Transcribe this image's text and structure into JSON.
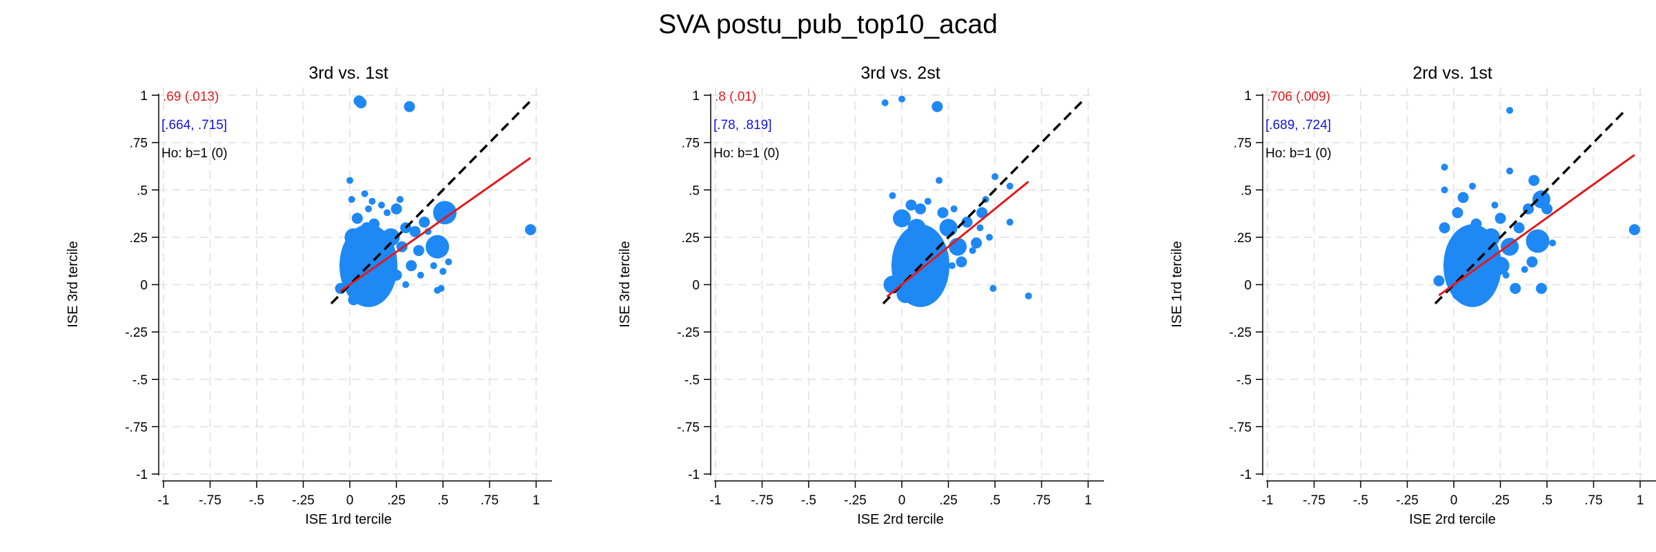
{
  "title": "SVA postu_pub_top10_acad",
  "colors": {
    "points": "#1e88f5",
    "fit_line": "#e3191c",
    "diagonal": "#000000",
    "coef_text": "#e3191c",
    "ci_text": "#1212e6",
    "test_text": "#000000",
    "grid": "#e6e6e6"
  },
  "chart_data": [
    {
      "type": "scatter",
      "title": "3rd vs. 1st",
      "xlabel": "ISE 1rd tercile",
      "ylabel": "ISE 3rd tercile",
      "xlim": [
        -1,
        1
      ],
      "ylim": [
        -1,
        1
      ],
      "xticks": [
        "-1",
        "-.75",
        "-.5",
        "-.25",
        "0",
        ".25",
        ".5",
        ".75",
        "1"
      ],
      "yticks": [
        "-1",
        "-.75",
        "-.5",
        "-.25",
        "0",
        ".25",
        ".5",
        ".75",
        "1"
      ],
      "grid": true,
      "annotations": {
        "coef": ".69 (.013)",
        "ci": "[.664, .715]",
        "test": "Ho: b=1 (0)"
      },
      "fit_line": {
        "slope": 0.69,
        "intercept": 0.0,
        "x_range": [
          -0.05,
          0.97
        ]
      },
      "diagonal": {
        "x_range": [
          -0.1,
          0.97
        ]
      },
      "points": [
        {
          "x": 0.05,
          "y": 0.97,
          "s": 2
        },
        {
          "x": 0.06,
          "y": 0.96,
          "s": 2
        },
        {
          "x": 0.32,
          "y": 0.94,
          "s": 2
        },
        {
          "x": 0.97,
          "y": 0.29,
          "s": 2
        },
        {
          "x": 0.0,
          "y": 0.55,
          "s": 1
        },
        {
          "x": 0.12,
          "y": 0.44,
          "s": 1
        },
        {
          "x": 0.27,
          "y": 0.45,
          "s": 1
        },
        {
          "x": 0.25,
          "y": 0.4,
          "s": 2
        },
        {
          "x": 0.51,
          "y": 0.38,
          "s": 4
        },
        {
          "x": 0.47,
          "y": 0.2,
          "s": 4
        },
        {
          "x": 0.53,
          "y": 0.12,
          "s": 1
        },
        {
          "x": 0.5,
          "y": 0.07,
          "s": 1
        },
        {
          "x": 0.49,
          "y": -0.02,
          "s": 1
        },
        {
          "x": 0.47,
          "y": -0.03,
          "s": 1
        },
        {
          "x": 0.13,
          "y": 0.32,
          "s": 2
        },
        {
          "x": 0.3,
          "y": 0.3,
          "s": 2
        },
        {
          "x": 0.4,
          "y": 0.33,
          "s": 2
        },
        {
          "x": 0.37,
          "y": 0.18,
          "s": 2
        },
        {
          "x": 0.33,
          "y": 0.1,
          "s": 2
        },
        {
          "x": -0.05,
          "y": -0.02,
          "s": 2
        },
        {
          "x": 0.0,
          "y": 0.05,
          "s": 3
        },
        {
          "x": 0.0,
          "y": 0.15,
          "s": 3
        },
        {
          "x": 0.02,
          "y": 0.25,
          "s": 3
        },
        {
          "x": 0.05,
          "y": 0.1,
          "s": 3
        },
        {
          "x": 0.08,
          "y": 0.2,
          "s": 3
        },
        {
          "x": 0.1,
          "y": 0.0,
          "s": 3
        },
        {
          "x": 0.12,
          "y": 0.08,
          "s": 3
        },
        {
          "x": 0.15,
          "y": 0.18,
          "s": 3
        },
        {
          "x": 0.2,
          "y": 0.12,
          "s": 3
        },
        {
          "x": 0.22,
          "y": 0.25,
          "s": 3
        },
        {
          "x": 0.06,
          "y": -0.05,
          "s": 2
        },
        {
          "x": 0.02,
          "y": -0.08,
          "s": 2
        },
        {
          "x": 0.18,
          "y": 0.03,
          "s": 2
        },
        {
          "x": 0.25,
          "y": 0.05,
          "s": 2
        },
        {
          "x": 0.28,
          "y": 0.2,
          "s": 2
        },
        {
          "x": 0.04,
          "y": 0.35,
          "s": 2
        },
        {
          "x": 0.09,
          "y": 0.3,
          "s": 2
        },
        {
          "x": 0.35,
          "y": 0.28,
          "s": 2
        },
        {
          "x": 0.2,
          "y": 0.38,
          "s": 1
        },
        {
          "x": 0.45,
          "y": 0.1,
          "s": 1
        },
        {
          "x": 0.42,
          "y": 0.28,
          "s": 1
        },
        {
          "x": 0.15,
          "y": -0.03,
          "s": 2
        },
        {
          "x": 0.3,
          "y": 0.0,
          "s": 1
        },
        {
          "x": 0.38,
          "y": 0.05,
          "s": 1
        },
        {
          "x": 0.1,
          "y": 0.4,
          "s": 1
        },
        {
          "x": 0.17,
          "y": 0.42,
          "s": 1
        },
        {
          "x": 0.08,
          "y": 0.48,
          "s": 1
        },
        {
          "x": 0.01,
          "y": 0.45,
          "s": 1
        }
      ]
    },
    {
      "type": "scatter",
      "title": "3rd vs. 2st",
      "xlabel": "ISE 2rd tercile",
      "ylabel": "ISE 3rd tercile",
      "xlim": [
        -1,
        1
      ],
      "ylim": [
        -1,
        1
      ],
      "xticks": [
        "-1",
        "-.75",
        "-.5",
        "-.25",
        "0",
        ".25",
        ".5",
        ".75",
        "1"
      ],
      "yticks": [
        "-1",
        "-.75",
        "-.5",
        "-.25",
        "0",
        ".25",
        ".5",
        ".75",
        "1"
      ],
      "grid": true,
      "annotations": {
        "coef": ".8 (.01)",
        "ci": "[.78, .819]",
        "test": "Ho: b=1 (0)"
      },
      "fit_line": {
        "slope": 0.8,
        "intercept": 0.0,
        "x_range": [
          -0.08,
          0.68
        ]
      },
      "diagonal": {
        "x_range": [
          -0.1,
          0.97
        ]
      },
      "points": [
        {
          "x": -0.09,
          "y": 0.96,
          "s": 1
        },
        {
          "x": 0.0,
          "y": 0.98,
          "s": 1
        },
        {
          "x": 0.19,
          "y": 0.94,
          "s": 2
        },
        {
          "x": 0.5,
          "y": 0.57,
          "s": 1
        },
        {
          "x": 0.58,
          "y": 0.52,
          "s": 1
        },
        {
          "x": 0.2,
          "y": 0.55,
          "s": 1
        },
        {
          "x": 0.45,
          "y": 0.45,
          "s": 1
        },
        {
          "x": 0.43,
          "y": 0.38,
          "s": 2
        },
        {
          "x": 0.58,
          "y": 0.33,
          "s": 1
        },
        {
          "x": 0.47,
          "y": 0.25,
          "s": 1
        },
        {
          "x": 0.49,
          "y": -0.02,
          "s": 1
        },
        {
          "x": 0.68,
          "y": -0.06,
          "s": 1
        },
        {
          "x": -0.05,
          "y": 0.47,
          "s": 1
        },
        {
          "x": 0.0,
          "y": 0.35,
          "s": 3
        },
        {
          "x": 0.05,
          "y": 0.2,
          "s": 3
        },
        {
          "x": 0.0,
          "y": 0.05,
          "s": 3
        },
        {
          "x": 0.1,
          "y": 0.1,
          "s": 3
        },
        {
          "x": 0.15,
          "y": 0.25,
          "s": 3
        },
        {
          "x": 0.2,
          "y": 0.15,
          "s": 3
        },
        {
          "x": 0.25,
          "y": 0.3,
          "s": 3
        },
        {
          "x": 0.3,
          "y": 0.2,
          "s": 3
        },
        {
          "x": -0.05,
          "y": 0.0,
          "s": 3
        },
        {
          "x": 0.02,
          "y": -0.05,
          "s": 3
        },
        {
          "x": 0.08,
          "y": -0.02,
          "s": 2
        },
        {
          "x": 0.12,
          "y": 0.02,
          "s": 2
        },
        {
          "x": 0.18,
          "y": 0.05,
          "s": 2
        },
        {
          "x": 0.22,
          "y": 0.38,
          "s": 2
        },
        {
          "x": 0.35,
          "y": 0.33,
          "s": 2
        },
        {
          "x": 0.4,
          "y": 0.22,
          "s": 2
        },
        {
          "x": 0.32,
          "y": 0.12,
          "s": 2
        },
        {
          "x": 0.05,
          "y": 0.42,
          "s": 2
        },
        {
          "x": 0.1,
          "y": 0.4,
          "s": 2
        },
        {
          "x": 0.14,
          "y": 0.44,
          "s": 1
        },
        {
          "x": 0.27,
          "y": 0.1,
          "s": 1
        },
        {
          "x": 0.42,
          "y": 0.3,
          "s": 1
        },
        {
          "x": 0.08,
          "y": 0.3,
          "s": 3
        },
        {
          "x": 0.28,
          "y": 0.4,
          "s": 1
        },
        {
          "x": 0.38,
          "y": 0.18,
          "s": 1
        }
      ]
    },
    {
      "type": "scatter",
      "title": "2rd vs. 1st",
      "xlabel": "ISE 2rd tercile",
      "ylabel": "ISE 1rd tercile",
      "xlim": [
        -1,
        1
      ],
      "ylim": [
        -1,
        1
      ],
      "xticks": [
        "-1",
        "-.75",
        "-.5",
        "-.25",
        "0",
        ".25",
        ".5",
        ".75",
        "1"
      ],
      "yticks": [
        "-1",
        "-.75",
        "-.5",
        "-.25",
        "0",
        ".25",
        ".5",
        ".75",
        "1"
      ],
      "grid": true,
      "annotations": {
        "coef": ".706 (.009)",
        "ci": "[.689, .724]",
        "test": "Ho: b=1 (0)"
      },
      "fit_line": {
        "slope": 0.706,
        "intercept": 0.0,
        "x_range": [
          -0.08,
          0.97
        ]
      },
      "diagonal": {
        "x_range": [
          -0.1,
          0.92
        ]
      },
      "points": [
        {
          "x": 0.3,
          "y": 0.92,
          "s": 1
        },
        {
          "x": 0.97,
          "y": 0.29,
          "s": 2
        },
        {
          "x": -0.05,
          "y": 0.62,
          "s": 1
        },
        {
          "x": 0.3,
          "y": 0.6,
          "s": 1
        },
        {
          "x": 0.43,
          "y": 0.55,
          "s": 2
        },
        {
          "x": 0.1,
          "y": 0.52,
          "s": 1
        },
        {
          "x": -0.05,
          "y": 0.5,
          "s": 1
        },
        {
          "x": 0.05,
          "y": 0.46,
          "s": 2
        },
        {
          "x": 0.47,
          "y": 0.45,
          "s": 3
        },
        {
          "x": 0.45,
          "y": 0.23,
          "s": 4
        },
        {
          "x": 0.53,
          "y": 0.22,
          "s": 1
        },
        {
          "x": 0.47,
          "y": -0.02,
          "s": 2
        },
        {
          "x": 0.33,
          "y": -0.02,
          "s": 2
        },
        {
          "x": -0.08,
          "y": 0.02,
          "s": 2
        },
        {
          "x": 0.0,
          "y": 0.1,
          "s": 3
        },
        {
          "x": 0.05,
          "y": 0.2,
          "s": 3
        },
        {
          "x": 0.1,
          "y": 0.05,
          "s": 3
        },
        {
          "x": 0.15,
          "y": 0.15,
          "s": 3
        },
        {
          "x": 0.2,
          "y": 0.25,
          "s": 3
        },
        {
          "x": 0.25,
          "y": 0.1,
          "s": 3
        },
        {
          "x": 0.3,
          "y": 0.2,
          "s": 3
        },
        {
          "x": 0.02,
          "y": -0.05,
          "s": 2
        },
        {
          "x": 0.08,
          "y": -0.03,
          "s": 2
        },
        {
          "x": 0.18,
          "y": 0.0,
          "s": 2
        },
        {
          "x": 0.35,
          "y": 0.3,
          "s": 2
        },
        {
          "x": 0.4,
          "y": 0.4,
          "s": 2
        },
        {
          "x": 0.42,
          "y": 0.12,
          "s": 2
        },
        {
          "x": -0.05,
          "y": 0.3,
          "s": 2
        },
        {
          "x": 0.02,
          "y": 0.38,
          "s": 2
        },
        {
          "x": 0.12,
          "y": 0.32,
          "s": 2
        },
        {
          "x": 0.22,
          "y": 0.42,
          "s": 1
        },
        {
          "x": 0.28,
          "y": 0.05,
          "s": 1
        },
        {
          "x": 0.38,
          "y": 0.08,
          "s": 1
        },
        {
          "x": 0.5,
          "y": 0.4,
          "s": 2
        },
        {
          "x": 0.08,
          "y": 0.25,
          "s": 3
        },
        {
          "x": 0.25,
          "y": 0.35,
          "s": 2
        }
      ]
    }
  ]
}
